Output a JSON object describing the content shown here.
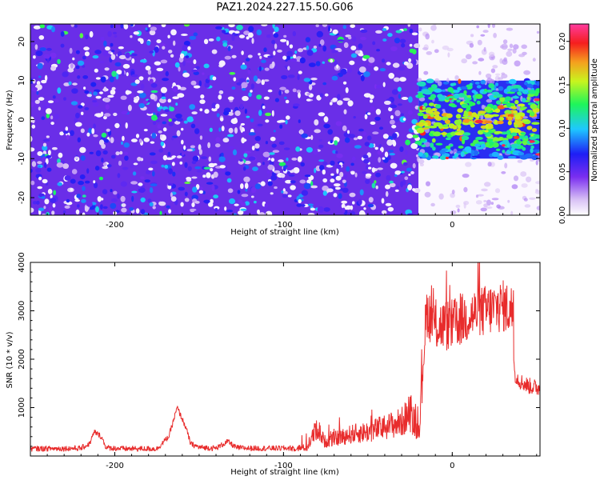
{
  "title": "PAZ1.2024.227.15.50.G06",
  "colors": {
    "snr_line": "#e82c2c",
    "axis": "#000000",
    "colormap": [
      "#ffffff",
      "#9f5fe8",
      "#5a1ef0",
      "#1e1ef5",
      "#1ec8ff",
      "#1ef55a",
      "#c8f51e",
      "#f5a01e",
      "#f51e1e",
      "#ff3c9f"
    ]
  },
  "chart_data": [
    {
      "type": "heatmap",
      "title": "PAZ1.2024.227.15.50.G06",
      "xlabel": "Height of straight line (km)",
      "ylabel": "Frequency (Hz)",
      "xlim": [
        -250,
        52
      ],
      "ylim": [
        -24.5,
        24.5
      ],
      "x_ticks": [
        -200,
        -100,
        0
      ],
      "y_ticks": [
        -20,
        -10,
        0,
        10,
        20
      ],
      "colorbar": {
        "label": "Normalized spectral amplitude",
        "range": [
          0.0,
          0.22
        ],
        "ticks": [
          "0.00",
          "0.05",
          "0.10",
          "0.15",
          "0.20"
        ]
      },
      "regions": [
        {
          "x_range": [
            -250,
            -20
          ],
          "frequency_range": [
            -24.5,
            24.5
          ],
          "level": "uniform speckle ~0.02-0.07"
        },
        {
          "x_range": [
            -20,
            52
          ],
          "frequency_range": [
            -10,
            10
          ],
          "level": "strong band ~0.05-0.22, peaks near 0 Hz"
        },
        {
          "x_range": [
            -20,
            52
          ],
          "frequency_range": [
            10,
            24.5
          ],
          "level": "near zero"
        },
        {
          "x_range": [
            -20,
            52
          ],
          "frequency_range": [
            -24.5,
            -10
          ],
          "level": "near zero"
        }
      ]
    },
    {
      "type": "line",
      "xlabel": "Height of straight line (km)",
      "ylabel": "SNR (10 * v/v)",
      "xlim": [
        -250,
        52
      ],
      "ylim": [
        0,
        4000
      ],
      "x_ticks": [
        -200,
        -100,
        0
      ],
      "y_ticks": [
        1000,
        2000,
        3000,
        4000
      ],
      "series": [
        {
          "x": [
            -250,
            -220,
            -215,
            -212,
            -208,
            -205,
            -195,
            -175,
            -168,
            -163,
            -158,
            -155,
            -150,
            -140,
            -133,
            -128,
            -120,
            -100,
            -86,
            -80,
            -76,
            -70,
            -60,
            -50,
            -40,
            -30,
            -25,
            -20,
            -18,
            -17,
            -15,
            -10,
            0,
            10,
            20,
            30,
            36,
            37,
            40,
            45,
            52
          ],
          "y": [
            150,
            160,
            250,
            500,
            400,
            170,
            150,
            150,
            400,
            1000,
            600,
            250,
            180,
            160,
            300,
            170,
            160,
            160,
            170,
            600,
            300,
            350,
            450,
            500,
            600,
            700,
            900,
            500,
            1400,
            2200,
            3000,
            2700,
            2700,
            2900,
            3000,
            3100,
            3000,
            1700,
            1550,
            1450,
            1400
          ]
        }
      ]
    }
  ]
}
